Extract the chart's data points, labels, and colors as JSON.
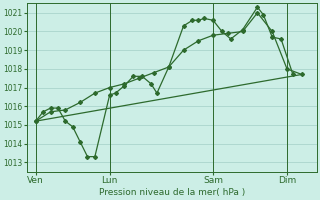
{
  "bg_color": "#cceee6",
  "grid_color": "#aad4cc",
  "line_color": "#2d6a2d",
  "xlabel": "Pression niveau de la mer( hPa )",
  "ylim": [
    1012.5,
    1021.5
  ],
  "yticks": [
    1013,
    1014,
    1015,
    1016,
    1017,
    1018,
    1019,
    1020,
    1021
  ],
  "day_positions": [
    0,
    2.5,
    6.0,
    8.5
  ],
  "day_labels": [
    "Ven",
    "Lun",
    "Sam",
    "Dim"
  ],
  "xmin": -0.3,
  "xmax": 9.5,
  "series1_x": [
    0.0,
    0.25,
    0.5,
    0.75,
    1.0,
    1.25,
    1.5,
    1.75,
    2.0,
    2.5,
    2.7,
    3.0,
    3.3,
    3.6,
    3.9,
    4.1,
    4.5,
    5.0,
    5.3,
    5.5,
    5.7,
    6.0,
    6.3,
    6.6,
    7.0,
    7.5,
    7.7,
    8.0,
    8.3,
    8.7
  ],
  "series1_y": [
    1015.2,
    1015.7,
    1015.9,
    1015.9,
    1015.2,
    1014.9,
    1014.1,
    1013.3,
    1013.3,
    1016.6,
    1016.7,
    1017.1,
    1017.6,
    1017.6,
    1017.2,
    1016.7,
    1018.1,
    1020.3,
    1020.6,
    1020.6,
    1020.7,
    1020.6,
    1020.0,
    1019.6,
    1020.1,
    1021.3,
    1020.9,
    1019.7,
    1019.6,
    1017.7
  ],
  "series2_x": [
    0.0,
    0.5,
    1.0,
    1.5,
    2.0,
    2.5,
    3.0,
    3.5,
    4.0,
    4.5,
    5.0,
    5.5,
    6.0,
    6.5,
    7.0,
    7.5,
    8.0,
    8.5,
    9.0
  ],
  "series2_y": [
    1015.2,
    1015.7,
    1015.8,
    1016.2,
    1016.7,
    1017.0,
    1017.2,
    1017.5,
    1017.8,
    1018.1,
    1019.0,
    1019.5,
    1019.8,
    1019.9,
    1020.0,
    1021.0,
    1020.0,
    1018.0,
    1017.7
  ],
  "series3_x": [
    0.0,
    9.0
  ],
  "series3_y": [
    1015.2,
    1017.7
  ]
}
